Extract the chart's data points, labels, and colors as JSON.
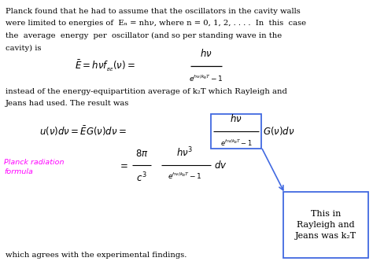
{
  "bg_color": "#ffffff",
  "text_color": "#000000",
  "planck_label_color": "#ff00ff",
  "box_edge_color": "#4169e1",
  "arrow_color": "#4169e1",
  "para1_lines": [
    "Planck found that he had to assume that the oscillators in the cavity walls",
    "were limited to energies of  Eₙ = nhν, where n = 0, 1, 2, . . . .  In  this  case",
    "the  average  energy  per  oscillator (and so per standing wave in the",
    "cavity) is"
  ],
  "para2_lines": [
    "instead of the energy-equipartition average of k₂T which Rayleigh and",
    "Jeans had used. The result was"
  ],
  "para3": "which agrees with the experimental findings.",
  "planck_label": "Planck radiation\nformula",
  "box2_text": "This in\nRayleigh and\nJeans was k₂T"
}
